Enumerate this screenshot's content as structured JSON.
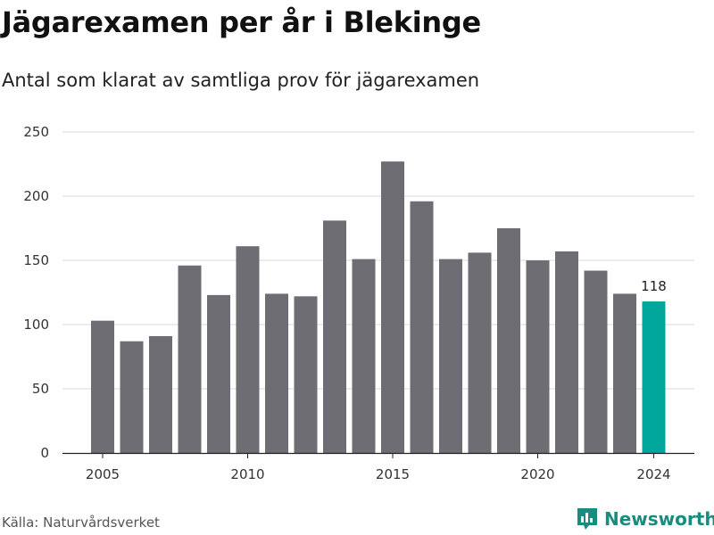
{
  "title": "Jägarexamen per år i Blekinge",
  "subtitle": "Antal som klarat av samtliga prov för jägarexamen",
  "source": "Källa: Naturvårdsverket",
  "brand": {
    "name": "Newsworthy",
    "icon": "newsworthy-logo-icon",
    "color": "#1a8c7f"
  },
  "colors": {
    "bar": "#6e6d73",
    "highlight": "#00a79a",
    "grid": "#d9d9d9"
  },
  "chart_data": {
    "type": "bar",
    "x": [
      2005,
      2006,
      2007,
      2008,
      2009,
      2010,
      2011,
      2012,
      2013,
      2014,
      2015,
      2016,
      2017,
      2018,
      2019,
      2020,
      2021,
      2022,
      2023,
      2024
    ],
    "values": [
      103,
      87,
      91,
      146,
      123,
      161,
      124,
      122,
      181,
      151,
      227,
      196,
      151,
      156,
      175,
      150,
      157,
      142,
      124,
      118
    ],
    "highlight_x": 2024,
    "data_labels": [
      {
        "x": 2024,
        "text": "118"
      }
    ],
    "ylim": [
      0,
      250
    ],
    "yticks": [
      0,
      50,
      100,
      150,
      200,
      250
    ],
    "xticks": [
      2005,
      2010,
      2015,
      2020,
      2024
    ],
    "xlabel": "",
    "ylabel": "",
    "grid": "horizontal"
  }
}
